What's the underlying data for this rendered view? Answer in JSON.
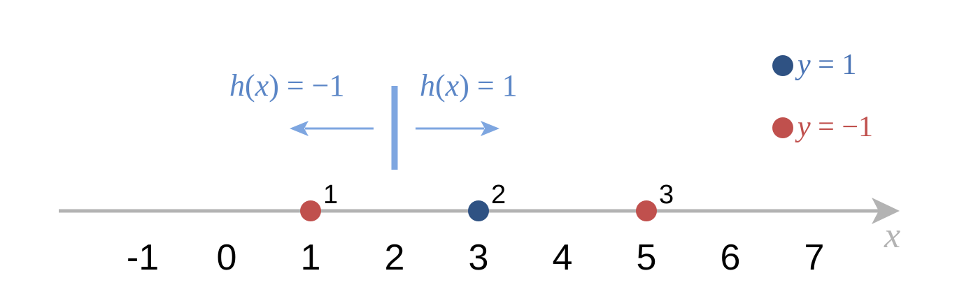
{
  "axis": {
    "label": "x",
    "ticks": [
      "-1",
      "0",
      "1",
      "2",
      "3",
      "4",
      "5",
      "6",
      "7"
    ],
    "tick_values": [
      -1,
      0,
      1,
      2,
      3,
      4,
      5,
      6,
      7
    ],
    "color": "#b3b3b3"
  },
  "threshold": {
    "value": 2,
    "color": "#7ea6e0",
    "left_label": {
      "fn": "h",
      "arg": "x",
      "eq": "=",
      "val": "−1"
    },
    "right_label": {
      "fn": "h",
      "arg": "x",
      "eq": "=",
      "val": "1"
    }
  },
  "points": [
    {
      "id": "1",
      "x": 1,
      "class": "y=-1",
      "color": "#c0504d"
    },
    {
      "id": "2",
      "x": 3,
      "class": "y=1",
      "color": "#2f5283"
    },
    {
      "id": "3",
      "x": 5,
      "class": "y=-1",
      "color": "#c0504d"
    }
  ],
  "legend": [
    {
      "var": "y",
      "eq": "=",
      "val": "1",
      "color": "#2f5283",
      "text_color": "#4a74b5"
    },
    {
      "var": "y",
      "eq": "=",
      "val": "−1",
      "color": "#c0504d",
      "text_color": "#c0504d"
    }
  ],
  "label_color": "#5b86c6"
}
